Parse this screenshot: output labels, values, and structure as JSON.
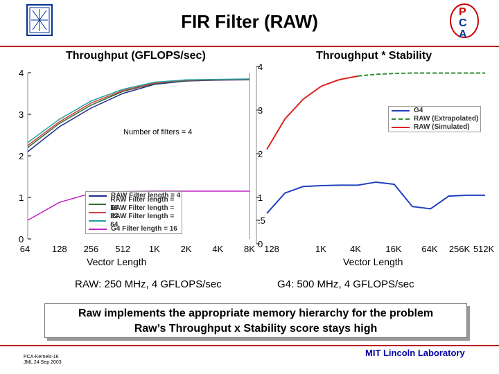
{
  "slide": {
    "title": "FIR Filter (RAW)",
    "summary_line1": "Raw implements the appropriate memory hierarchy for the problem",
    "summary_line2": "Raw’s Throughput x Stability score stays high",
    "footer_left_line1": "PCA-Kernels-16",
    "footer_left_line2": "JML 24 Sep 2003",
    "footer_right": "MIT Lincoln Laboratory",
    "logo_right_letters": [
      "P",
      "C",
      "A"
    ]
  },
  "chart_data": [
    {
      "type": "line",
      "title": "Throughput (GFLOPS/sec)",
      "xlabel": "Vector Length",
      "ylabel": "",
      "x_ticks": [
        "64",
        "128",
        "256",
        "512",
        "1K",
        "2K",
        "4K",
        "8K"
      ],
      "y_ticks": [
        "0",
        "1",
        "2",
        "3",
        "4"
      ],
      "ylim": [
        0,
        4
      ],
      "annotation": "Number of filters = 4",
      "caption": "RAW: 250 MHz, 4 GFLOPS/sec",
      "legend_position": "bottom-right",
      "x": [
        64,
        128,
        256,
        512,
        1024,
        2048,
        4096,
        8192
      ],
      "series": [
        {
          "name": "RAW Filter length = 4",
          "color": "#1e2a8c",
          "values": [
            2.1,
            2.7,
            3.15,
            3.5,
            3.72,
            3.8,
            3.82,
            3.83
          ]
        },
        {
          "name": "RAW Filter length = 16",
          "color": "#2e6b2e",
          "values": [
            2.2,
            2.78,
            3.22,
            3.55,
            3.74,
            3.81,
            3.83,
            3.84
          ]
        },
        {
          "name": "RAW Filter length = 32",
          "color": "#d04040",
          "values": [
            2.25,
            2.82,
            3.27,
            3.57,
            3.75,
            3.82,
            3.83,
            3.84
          ]
        },
        {
          "name": "RAW Filter length = 64",
          "color": "#20a0a0",
          "values": [
            2.32,
            2.88,
            3.32,
            3.6,
            3.77,
            3.83,
            3.84,
            3.85
          ]
        },
        {
          "name": "G4 Filter length = 16",
          "color": "#c020c0",
          "values": [
            0.45,
            0.88,
            1.1,
            1.14,
            1.15,
            1.15,
            1.15,
            1.15
          ]
        }
      ]
    },
    {
      "type": "line",
      "title": "Throughput * Stability",
      "xlabel": "Vector Length",
      "ylabel": "",
      "x_ticks": [
        "128",
        "1K",
        "4K",
        "16K",
        "64K",
        "256K",
        "512K"
      ],
      "y_ticks": [
        "0",
        ".5",
        "1",
        "2",
        "3",
        "4"
      ],
      "caption": "G4: 500 MHz, 4 GFLOPS/sec",
      "legend_position": "right",
      "x": [
        "128",
        "256",
        "512",
        "1K",
        "2K",
        "4K",
        "8K",
        "16K",
        "32K",
        "64K",
        "128K",
        "256K",
        "512K"
      ],
      "series": [
        {
          "name": "G4",
          "color": "#2040c0",
          "style": "solid",
          "values": [
            0.65,
            1.1,
            1.25,
            1.27,
            1.28,
            1.28,
            1.35,
            1.3,
            0.8,
            0.75,
            1.03,
            1.05,
            1.05
          ]
        },
        {
          "name": "RAW (Extrapolated)",
          "color": "#2e8b2e",
          "style": "dashed",
          "values": [
            null,
            null,
            null,
            null,
            null,
            3.78,
            3.82,
            3.84,
            3.85,
            3.85,
            3.85,
            3.85,
            3.85
          ]
        },
        {
          "name": "RAW (Simulated)",
          "color": "#dd2222",
          "style": "solid",
          "values": [
            2.1,
            2.8,
            3.25,
            3.55,
            3.7,
            3.78,
            null,
            null,
            null,
            null,
            null,
            null,
            null
          ]
        }
      ]
    }
  ]
}
